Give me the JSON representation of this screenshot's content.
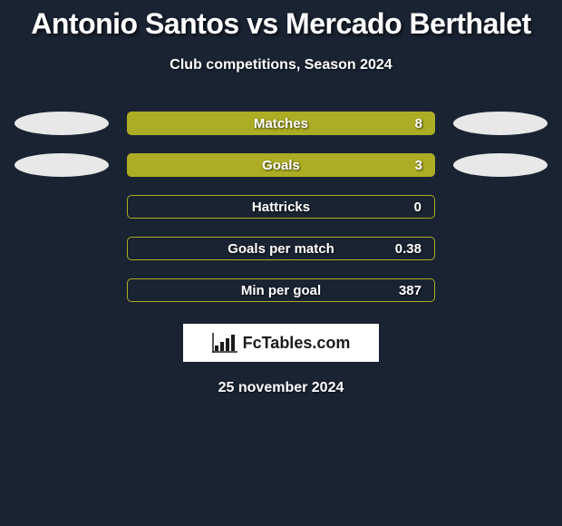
{
  "title": "Antonio Santos vs Mercado Berthalet",
  "subtitle": "Club competitions, Season 2024",
  "date": "25 november 2024",
  "logo_text": "FcTables.com",
  "colors": {
    "background": "#1a2332",
    "bar_fill": "#adac25",
    "bar_outline": "#adac25",
    "ellipse": "#e8e8e8",
    "logo_bg": "#ffffff",
    "logo_text": "#1a1a1a",
    "text": "#ffffff"
  },
  "stats": [
    {
      "label": "Matches",
      "value": "8",
      "filled": true,
      "left_ellipse": true,
      "right_ellipse": true
    },
    {
      "label": "Goals",
      "value": "3",
      "filled": true,
      "left_ellipse": true,
      "right_ellipse": true
    },
    {
      "label": "Hattricks",
      "value": "0",
      "filled": false,
      "left_ellipse": false,
      "right_ellipse": false
    },
    {
      "label": "Goals per match",
      "value": "0.38",
      "filled": false,
      "left_ellipse": false,
      "right_ellipse": false
    },
    {
      "label": "Min per goal",
      "value": "387",
      "filled": false,
      "left_ellipse": false,
      "right_ellipse": false
    }
  ]
}
